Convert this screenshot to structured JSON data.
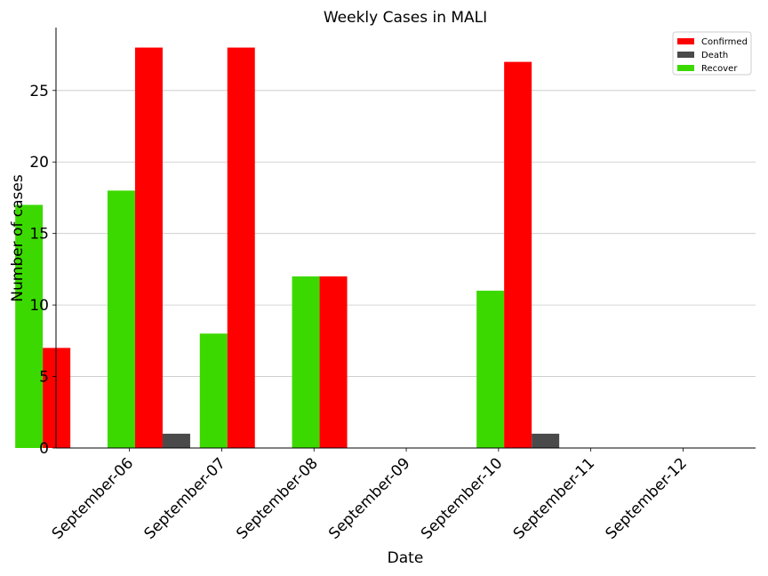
{
  "chart_data": {
    "type": "bar",
    "title": "Weekly Cases in MALI",
    "xlabel": "Date",
    "ylabel": "Number of cases",
    "categories": [
      "September-06",
      "September-07",
      "September-08",
      "September-09",
      "September-10",
      "September-11",
      "September-12"
    ],
    "series": [
      {
        "name": "Recover",
        "color": "#3cd900",
        "values": [
          17,
          18,
          8,
          12,
          0,
          11,
          0
        ]
      },
      {
        "name": "Confirmed",
        "color": "#ff0000",
        "values": [
          7,
          28,
          28,
          12,
          0,
          27,
          0
        ]
      },
      {
        "name": "Death",
        "color": "#4a4a4a",
        "values": [
          0,
          1,
          0,
          0,
          0,
          1,
          0
        ]
      }
    ],
    "legend_order": [
      "Confirmed",
      "Death",
      "Recover"
    ],
    "yticks": [
      0,
      5,
      10,
      15,
      20,
      25
    ],
    "ylim": [
      0,
      29.4
    ],
    "grid": "y",
    "legend_position": "top-right"
  }
}
